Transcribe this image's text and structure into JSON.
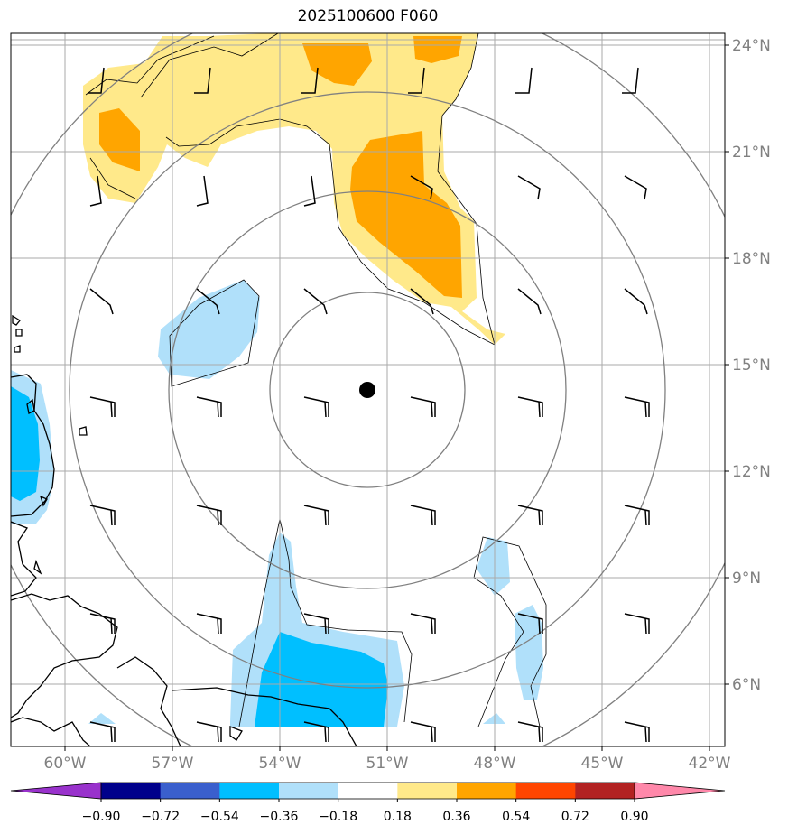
{
  "title": "2025100600 F060",
  "lat_labels": [
    "24°N",
    "21°N",
    "18°N",
    "15°N",
    "12°N",
    "9°N",
    "6°N"
  ],
  "lon_labels": [
    "60°W",
    "57°W",
    "54°W",
    "51°W",
    "48°W",
    "45°W",
    "42°W"
  ],
  "colorbar": {
    "tick_labels": [
      "−0.90",
      "−0.72",
      "−0.54",
      "−0.36",
      "−0.18",
      "0.18",
      "0.36",
      "0.54",
      "0.72",
      "0.90"
    ],
    "colors": [
      "#9932cc",
      "#00008b",
      "#3a5fcd",
      "#00bfff",
      "#b0e0fa",
      "#ffffff",
      "#ffe98a",
      "#ffa500",
      "#ff4500",
      "#b22222",
      "#ff88aa"
    ]
  },
  "map": {
    "storm_center": {
      "lon": -51.7,
      "lat": 14.35
    },
    "range_rings": [
      "ring-1",
      "ring-2",
      "ring-3",
      "ring-4"
    ],
    "grid_color": "#aaaaaa",
    "ring_color": "#808080"
  }
}
